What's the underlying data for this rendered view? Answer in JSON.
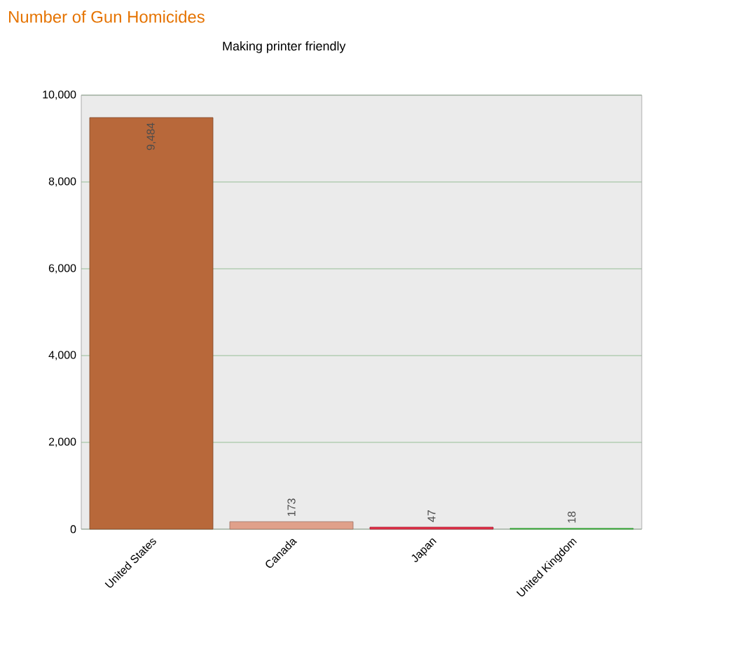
{
  "chart_data": {
    "type": "bar",
    "title": "Number of Gun Homicides",
    "subtitle": "Making printer friendly",
    "categories": [
      "United States",
      "Canada",
      "Japan",
      "United Kingdom"
    ],
    "values": [
      9484,
      173,
      47,
      18
    ],
    "value_labels": [
      "9,484",
      "173",
      "47",
      "18"
    ],
    "colors": [
      "#b8683a",
      "#e0a08a",
      "#e8304a",
      "#48d048"
    ],
    "ylim": [
      0,
      10000
    ],
    "yticks": [
      0,
      {
        "value": 2000,
        "label": "2,000"
      },
      {
        "value": 4000,
        "label": "4,000"
      },
      {
        "value": 6000,
        "label": "6,000"
      },
      {
        "value": 8000,
        "label": "8,000"
      },
      {
        "value": 10000,
        "label": "10,000"
      }
    ],
    "grid": "y"
  }
}
